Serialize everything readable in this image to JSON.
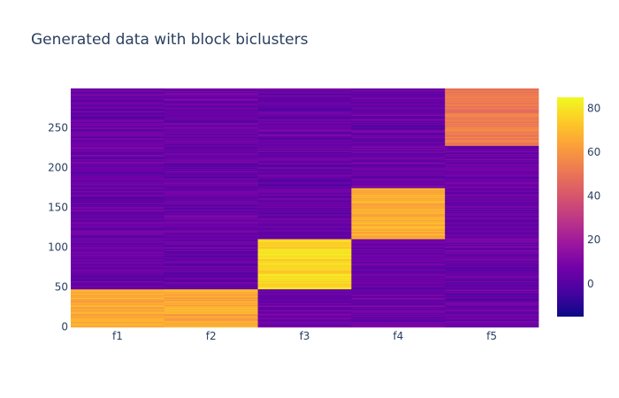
{
  "chart_data": {
    "type": "heatmap",
    "title": "Generated data with block biclusters",
    "xlabel": "",
    "ylabel": "",
    "x": [
      "f1",
      "f2",
      "f3",
      "f4",
      "f5"
    ],
    "y_range": [
      0,
      299
    ],
    "y_ticks": [
      0,
      50,
      100,
      150,
      200,
      250
    ],
    "zlim": [
      -15,
      85
    ],
    "colorbar_ticks": [
      0,
      20,
      40,
      60,
      80
    ],
    "colorscale": [
      "#0d0887",
      "#46039f",
      "#7201a8",
      "#9c179e",
      "#bd3786",
      "#d8576b",
      "#ed7953",
      "#fb9f3a",
      "#fdca26",
      "#f0f921"
    ],
    "background_level": 5,
    "blocks": [
      {
        "column": "f1",
        "row_start": 0,
        "row_end": 47,
        "value": 65
      },
      {
        "column": "f2",
        "row_start": 0,
        "row_end": 47,
        "value": 65
      },
      {
        "column": "f3",
        "row_start": 48,
        "row_end": 110,
        "value": 77
      },
      {
        "column": "f4",
        "row_start": 111,
        "row_end": 174,
        "value": 67
      },
      {
        "column": "f5",
        "row_start": 228,
        "row_end": 299,
        "value": 52
      }
    ]
  }
}
